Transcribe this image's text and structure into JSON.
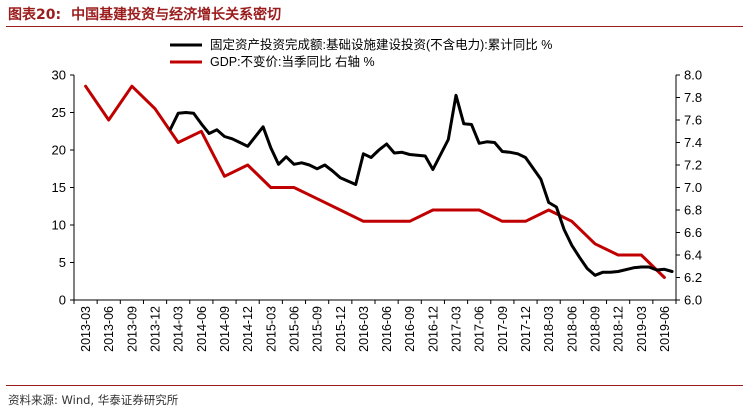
{
  "figure": {
    "label": "图表20:",
    "title": "中国基建投资与经济增长关系密切"
  },
  "source": "资料来源: Wind, 华泰证券研究所",
  "chart_data": {
    "type": "line",
    "x_tick_labels": [
      "2013-03",
      "2013-06",
      "2013-09",
      "2013-12",
      "2014-03",
      "2014-06",
      "2014-09",
      "2014-12",
      "2015-03",
      "2015-06",
      "2015-09",
      "2015-12",
      "2016-03",
      "2016-06",
      "2016-09",
      "2016-12",
      "2017-03",
      "2017-06",
      "2017-09",
      "2017-12",
      "2018-03",
      "2018-06",
      "2018-09",
      "2018-12",
      "2019-03",
      "2019-06"
    ],
    "left_axis": {
      "min": 0,
      "max": 30,
      "ticks": [
        "0",
        "5",
        "10",
        "15",
        "20",
        "25",
        "30"
      ]
    },
    "right_axis": {
      "min": 6.0,
      "max": 8.0,
      "ticks": [
        "6.0",
        "6.2",
        "6.4",
        "6.6",
        "6.8",
        "7.0",
        "7.2",
        "7.4",
        "7.6",
        "7.8",
        "8.0"
      ]
    },
    "legend_position": "top",
    "grid": false,
    "series": [
      {
        "name": "固定资产投资完成额:基础设施建设投资(不含电力):累计同比 %",
        "axis": "left",
        "color": "#000000",
        "x": [
          "2014-02",
          "2014-03",
          "2014-04",
          "2014-05",
          "2014-06",
          "2014-07",
          "2014-08",
          "2014-09",
          "2014-10",
          "2014-11",
          "2014-12",
          "2015-02",
          "2015-03",
          "2015-04",
          "2015-05",
          "2015-06",
          "2015-07",
          "2015-08",
          "2015-09",
          "2015-10",
          "2015-11",
          "2015-12",
          "2016-02",
          "2016-03",
          "2016-04",
          "2016-05",
          "2016-06",
          "2016-07",
          "2016-08",
          "2016-09",
          "2016-10",
          "2016-11",
          "2016-12",
          "2017-02",
          "2017-03",
          "2017-04",
          "2017-05",
          "2017-06",
          "2017-07",
          "2017-08",
          "2017-09",
          "2017-10",
          "2017-11",
          "2017-12",
          "2018-02",
          "2018-03",
          "2018-04",
          "2018-05",
          "2018-06",
          "2018-07",
          "2018-08",
          "2018-09",
          "2018-10",
          "2018-11",
          "2018-12",
          "2019-02",
          "2019-03",
          "2019-04",
          "2019-05",
          "2019-06",
          "2019-07"
        ],
        "values": [
          22.8,
          24.9,
          25.0,
          24.9,
          23.5,
          22.2,
          22.7,
          21.8,
          21.5,
          21.0,
          20.5,
          23.1,
          20.3,
          18.1,
          19.1,
          18.1,
          18.3,
          18.0,
          17.5,
          18.0,
          17.2,
          16.3,
          15.4,
          19.5,
          19.0,
          20.0,
          20.8,
          19.6,
          19.7,
          19.4,
          19.3,
          19.2,
          17.4,
          21.4,
          27.3,
          23.5,
          23.4,
          20.9,
          21.1,
          21.0,
          19.8,
          19.7,
          19.5,
          19.0,
          16.1,
          13.0,
          12.4,
          9.4,
          7.3,
          5.7,
          4.2,
          3.3,
          3.7,
          3.7,
          3.8,
          4.3,
          4.4,
          4.4,
          4.0,
          4.1,
          3.8
        ]
      },
      {
        "name": "GDP:不变价:当季同比 右轴 %",
        "axis": "right",
        "color": "#c00000",
        "x": [
          "2013-03",
          "2013-06",
          "2013-09",
          "2013-12",
          "2014-03",
          "2014-06",
          "2014-09",
          "2014-12",
          "2015-03",
          "2015-06",
          "2015-09",
          "2015-12",
          "2016-03",
          "2016-06",
          "2016-09",
          "2016-12",
          "2017-03",
          "2017-06",
          "2017-09",
          "2017-12",
          "2018-03",
          "2018-06",
          "2018-09",
          "2018-12",
          "2019-03",
          "2019-06"
        ],
        "values": [
          7.9,
          7.6,
          7.9,
          7.7,
          7.4,
          7.5,
          7.1,
          7.2,
          7.0,
          7.0,
          6.9,
          6.8,
          6.7,
          6.7,
          6.7,
          6.8,
          6.8,
          6.8,
          6.7,
          6.7,
          6.8,
          6.7,
          6.5,
          6.4,
          6.4,
          6.2
        ]
      }
    ]
  }
}
